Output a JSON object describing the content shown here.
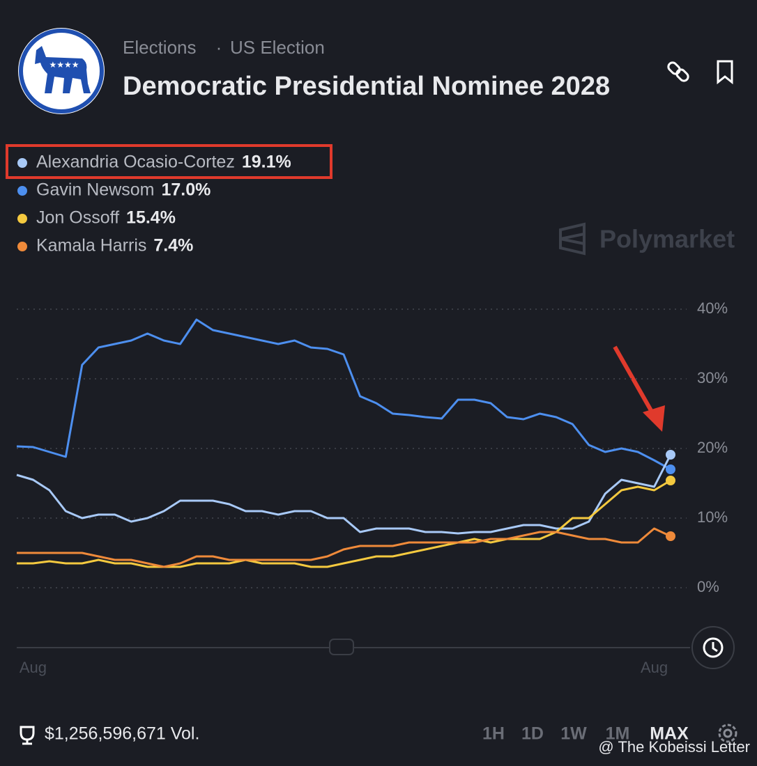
{
  "header": {
    "category": "Elections",
    "separator": "·",
    "subcategory": "US Election"
  },
  "chart_data": {
    "type": "line",
    "title": "Democratic Presidential Nominee 2028",
    "brand": "Polymarket",
    "categories": [
      null,
      "Aug",
      null,
      null,
      null,
      null,
      null,
      null,
      null,
      null,
      null,
      null,
      null,
      null,
      null,
      null,
      null,
      null,
      null,
      null,
      null,
      null,
      null,
      null,
      null,
      null,
      null,
      null,
      null,
      null,
      null,
      null,
      null,
      null,
      null,
      null,
      null,
      null,
      null,
      "Aug",
      null
    ],
    "series": [
      {
        "name": "Alexandria Ocasio-Cortez",
        "value_label": "19.1%",
        "color": "#a8c9f7",
        "values": [
          16.2,
          15.5,
          14,
          11,
          10,
          10.5,
          10.5,
          9.5,
          10,
          11,
          12.5,
          12.5,
          12.5,
          12,
          11,
          11,
          10.5,
          11,
          11,
          10,
          10,
          8,
          8.5,
          8.5,
          8.5,
          8,
          8,
          7.8,
          8,
          8,
          8.5,
          9,
          9,
          8.5,
          8.5,
          9.5,
          13.5,
          15.5,
          15,
          14.5,
          19.1
        ]
      },
      {
        "name": "Gavin Newsom",
        "value_label": "17.0%",
        "color": "#4d8fef",
        "values": [
          20.3,
          20.2,
          19.5,
          18.8,
          32,
          34.5,
          35,
          35.5,
          36.5,
          35.5,
          35,
          38.5,
          37,
          36.5,
          36,
          35.5,
          35,
          35.5,
          34.5,
          34.3,
          33.5,
          27.5,
          26.5,
          25,
          24.8,
          24.5,
          24.3,
          27,
          27,
          26.5,
          24.5,
          24.2,
          25,
          24.5,
          23.5,
          20.5,
          19.5,
          20,
          19.5,
          18.3,
          17.0
        ]
      },
      {
        "name": "Jon Ossoff",
        "value_label": "15.4%",
        "color": "#f4c93f",
        "values": [
          3.5,
          3.5,
          3.8,
          3.5,
          3.5,
          4,
          3.5,
          3.5,
          3,
          3,
          3,
          3.5,
          3.5,
          3.5,
          4,
          3.5,
          3.5,
          3.5,
          3,
          3,
          3.5,
          4,
          4.5,
          4.5,
          5,
          5.5,
          6,
          6.5,
          7,
          6.5,
          7,
          7,
          7,
          8,
          10,
          10,
          12,
          14,
          14.5,
          14,
          15.4
        ]
      },
      {
        "name": "Kamala Harris",
        "value_label": "7.4%",
        "color": "#ef8a3a",
        "values": [
          5,
          5,
          5,
          5,
          5,
          4.5,
          4,
          4,
          3.5,
          3,
          3.5,
          4.5,
          4.5,
          4,
          4,
          4,
          4,
          4,
          4,
          4.5,
          5.5,
          6,
          6,
          6,
          6.5,
          6.5,
          6.5,
          6.5,
          6.5,
          7,
          7,
          7.5,
          8,
          8,
          7.5,
          7,
          7,
          6.5,
          6.5,
          8.5,
          7.4
        ]
      }
    ],
    "ylim": [
      0,
      40
    ],
    "yticks": [
      {
        "value": 0,
        "label": "0%"
      },
      {
        "value": 10,
        "label": "10%"
      },
      {
        "value": 20,
        "label": "20%"
      },
      {
        "value": 30,
        "label": "30%"
      },
      {
        "value": 40,
        "label": "40%"
      }
    ],
    "grid": true,
    "volume": "$1,256,596,671 Vol.",
    "ranges": [
      "1H",
      "1D",
      "1W",
      "1M",
      "MAX"
    ],
    "watermark": "@ The Kobeissi Letter"
  }
}
